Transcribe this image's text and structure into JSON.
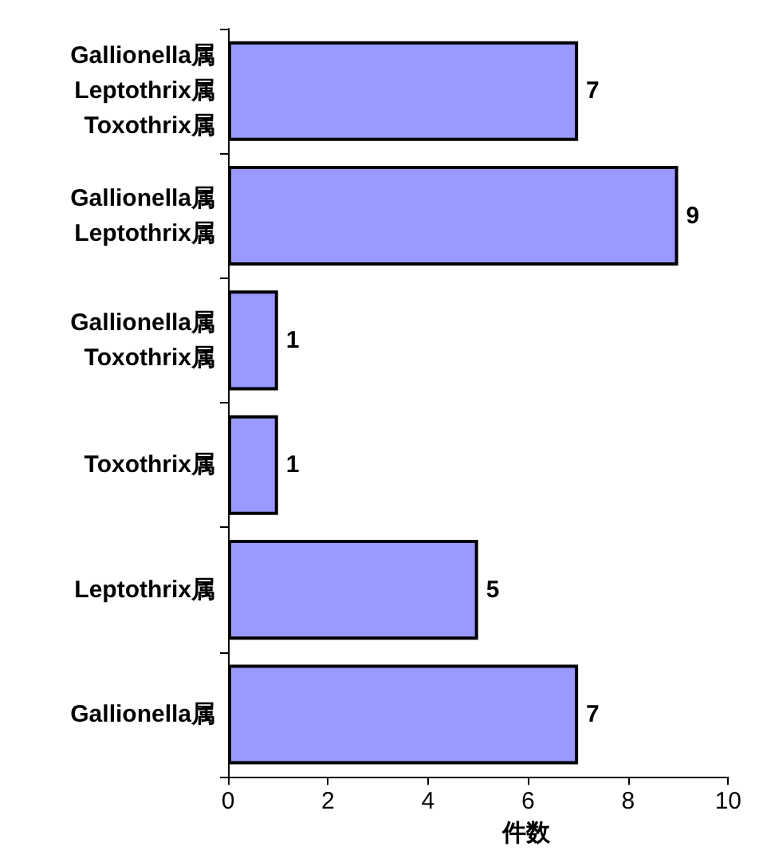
{
  "chart_data": {
    "type": "bar",
    "orientation": "horizontal",
    "categories": [
      "Gallionella属\nLeptothrix属\nToxothrix属",
      "Gallionella属\nLeptothrix属",
      "Gallionella属\nToxothrix属",
      "Toxothrix属",
      "Leptothrix属",
      "Gallionella属"
    ],
    "values": [
      7,
      9,
      1,
      1,
      5,
      7
    ],
    "color": "#9999ff",
    "xlim": [
      0,
      10
    ],
    "xticks": [
      0,
      2,
      4,
      6,
      8,
      10
    ],
    "xlabel": "件数",
    "data_labels": true,
    "grid": false
  }
}
